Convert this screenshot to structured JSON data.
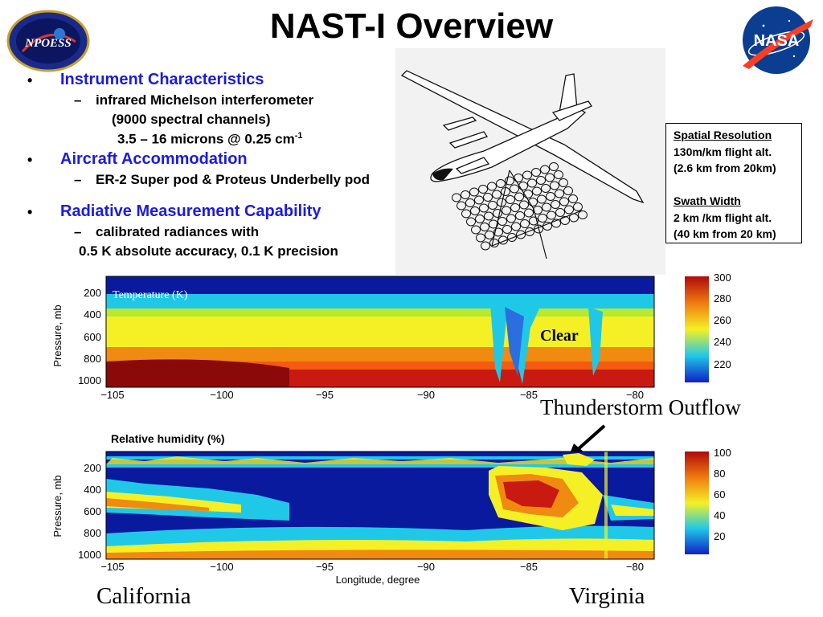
{
  "title": "NAST-I Overview",
  "bullets": {
    "b1": "Instrument Characteristics",
    "b1_sub1": "infrared Michelson interferometer",
    "b1_sub2": "(9000 spectral channels)",
    "b1_sub3_main": "3.5 – 16 microns @ 0.25 cm",
    "b1_sub3_sup": "-1",
    "b2": "Aircraft Accommodation",
    "b2_sub1": "ER-2  Super pod & Proteus Underbelly pod",
    "b3": "Radiative Measurement Capability",
    "b3_sub1": "calibrated radiances with",
    "b3_sub2": "0.5 K absolute accuracy, 0.1 K precision",
    "bullet_glyph": "•",
    "dash_glyph": "–"
  },
  "infobox": {
    "h1": "Spatial Resolution",
    "l1": "130m/km flight alt.",
    "l2": "(2.6 km from 20km)",
    "h2": "Swath Width",
    "l3": "2 km /km flight alt.",
    "l4": "(40 km from 20 km)"
  },
  "logos": {
    "left_text": "NPOESS",
    "right_text": "NASA"
  },
  "plots": {
    "temp_label": "Temperature (K)",
    "temp_annotation": "Clear",
    "rh_label": "Relative humidity (%)",
    "ylabel": "Pressure, mb",
    "xlabel": "Longitude, degree",
    "pressure_ticks": [
      "200",
      "400",
      "600",
      "800",
      "1000"
    ],
    "lon_ticks": [
      "−105",
      "−100",
      "−95",
      "−90",
      "−85",
      "−80"
    ],
    "temp_colorbar_ticks": [
      "300",
      "280",
      "260",
      "240",
      "220"
    ],
    "rh_colorbar_ticks": [
      "100",
      "80",
      "60",
      "40",
      "20"
    ],
    "thunderstorm_label": "Thunderstorm Outflow",
    "left_place": "California",
    "right_place": "Virginia"
  },
  "colors": {
    "bullet_blue": "#1a1ae6",
    "plot_navy": "#0a1a9e",
    "plot_red": "#c81a10",
    "plot_orange": "#f08a10",
    "plot_yellow": "#f5f025",
    "plot_cyan": "#20c8e8"
  }
}
